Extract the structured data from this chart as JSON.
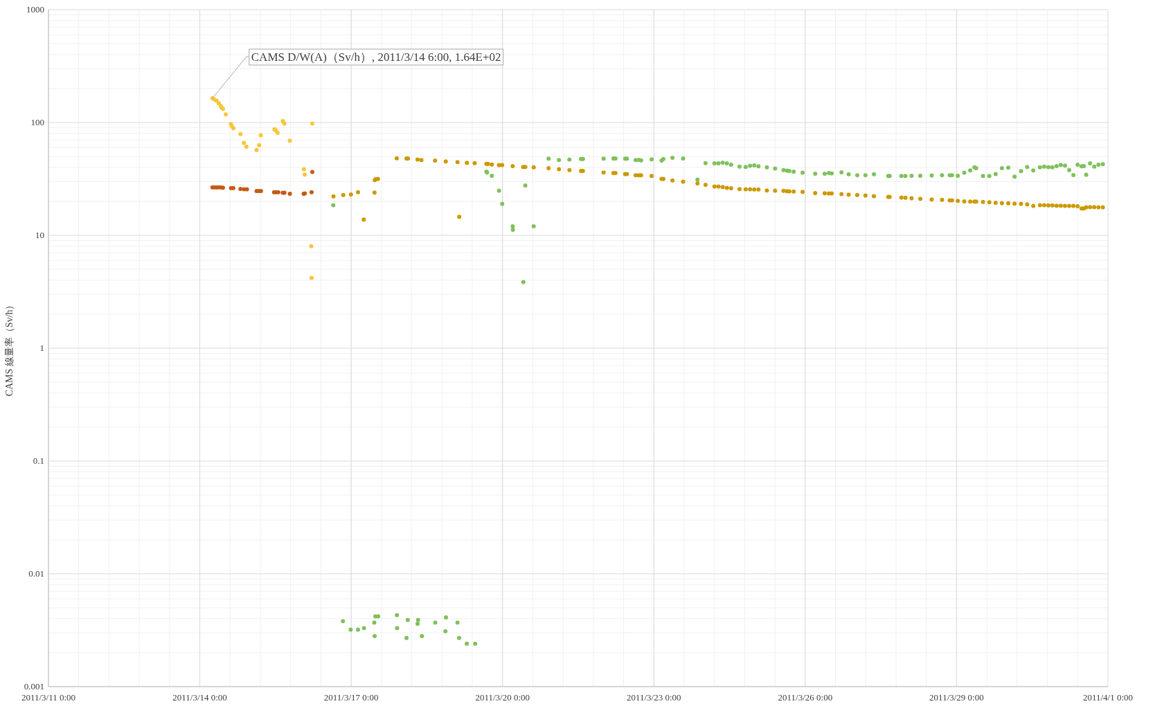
{
  "chart_data": {
    "type": "scatter",
    "ylabel": "CAMS 線量率（Sv/h）",
    "annotations": [
      {
        "text": "CAMS D/W(A)（Sv/h）, 2011/3/14 6:00, 1.64E+02",
        "x": "2011-03-14T06:00",
        "y": 164
      }
    ],
    "log": true,
    "grid": true,
    "marker": "circle",
    "xlim": [
      "2011-03-11",
      "2011-04-01"
    ],
    "xticks": [
      {
        "value": "2011-03-11",
        "label": "2011/3/11 0:00"
      },
      {
        "value": "2011-03-14",
        "label": "2011/3/14 0:00"
      },
      {
        "value": "2011-03-17",
        "label": "2011/3/17 0:00"
      },
      {
        "value": "2011-03-20",
        "label": "2011/3/20 0:00"
      },
      {
        "value": "2011-03-23",
        "label": "2011/3/23 0:00"
      },
      {
        "value": "2011-03-26",
        "label": "2011/3/26 0:00"
      },
      {
        "value": "2011-03-29",
        "label": "2011/3/29 0:00"
      },
      {
        "value": "2011-04-01",
        "label": "2011/4/1 0:00"
      }
    ],
    "ylim": [
      0.001,
      1000
    ],
    "yticks": [
      0.001,
      0.01,
      0.1,
      1,
      10,
      100,
      1000
    ],
    "series": [
      {
        "color": "#f7c63b",
        "x": [
          "2011-03-14T06:00",
          "2011-03-14T07:00",
          "2011-03-14T08:00",
          "2011-03-14T09:00",
          "2011-03-14T10:00",
          "2011-03-14T10:15",
          "2011-03-14T11:00",
          "2011-03-14T12:20",
          "2011-03-14T14:45",
          "2011-03-14T15:15",
          "2011-03-14T16:00",
          "2011-03-14T19:20",
          "2011-03-14T21:00",
          "2011-03-14T22:10",
          "2011-03-15T03:00",
          "2011-03-15T04:15",
          "2011-03-15T05:00",
          "2011-03-15T11:30",
          "2011-03-15T12:10",
          "2011-03-15T13:00",
          "2011-03-15T15:30",
          "2011-03-15T16:15",
          "2011-03-15T18:50",
          "2011-03-16T01:30",
          "2011-03-16T01:55",
          "2011-03-16T05:30",
          "2011-03-16T05:00",
          "2011-03-16T05:10"
        ],
        "values": [
          164,
          160,
          156,
          148,
          140,
          136,
          132,
          118,
          97,
          93,
          89,
          79,
          66,
          61,
          57,
          63,
          77,
          87,
          85,
          81,
          103,
          98,
          69,
          38.5,
          34.6,
          98,
          8.0,
          4.2
        ]
      },
      {
        "color": "#c65a12",
        "x": [
          "2011-03-14T06:00",
          "2011-03-14T07:00",
          "2011-03-14T08:00",
          "2011-03-14T09:00",
          "2011-03-14T10:00",
          "2011-03-14T11:00",
          "2011-03-14T14:50",
          "2011-03-14T15:55",
          "2011-03-14T19:20",
          "2011-03-14T21:05",
          "2011-03-14T22:25",
          "2011-03-15T03:00",
          "2011-03-15T04:00",
          "2011-03-15T05:05",
          "2011-03-15T11:20",
          "2011-03-15T12:10",
          "2011-03-15T13:20",
          "2011-03-15T15:30",
          "2011-03-15T16:15",
          "2011-03-15T18:50",
          "2011-03-16T01:25",
          "2011-03-16T01:55",
          "2011-03-16T05:10",
          "2011-03-16T05:30"
        ],
        "values": [
          26.6,
          26.6,
          26.6,
          26.6,
          26.6,
          26.4,
          26.2,
          26.2,
          25.8,
          25.6,
          25.6,
          24.7,
          24.7,
          24.7,
          24.1,
          24.1,
          24.1,
          23.8,
          23.8,
          23.3,
          23.3,
          23.5,
          24.1,
          36.4
        ]
      },
      {
        "color": "#cc9900",
        "x": [
          "2011-03-16T15:35",
          "2011-03-16T20:15",
          "2011-03-16T23:55",
          "2011-03-17T03:15",
          "2011-03-17T06:00",
          "2011-03-17T11:05",
          "2011-03-17T11:15",
          "2011-03-17T11:40",
          "2011-03-17T12:45",
          "2011-03-17T21:40",
          "2011-03-18T02:20",
          "2011-03-18T03:00",
          "2011-03-18T07:35",
          "2011-03-18T09:25",
          "2011-03-18T15:55",
          "2011-03-18T21:00",
          "2011-03-19T02:35",
          "2011-03-19T03:25",
          "2011-03-19T07:05",
          "2011-03-19T10:45",
          "2011-03-19T16:20",
          "2011-03-19T17:05",
          "2011-03-19T18:55",
          "2011-03-19T22:20",
          "2011-03-19T23:50",
          "2011-03-20T04:50",
          "2011-03-20T09:50",
          "2011-03-20T10:50",
          "2011-03-20T14:50",
          "2011-03-20T21:55",
          "2011-03-21T02:50",
          "2011-03-21T07:50",
          "2011-03-21T13:20",
          "2011-03-21T14:15",
          "2011-03-22T00:05",
          "2011-03-22T04:45",
          "2011-03-22T05:45",
          "2011-03-22T10:20",
          "2011-03-22T11:10",
          "2011-03-22T15:20",
          "2011-03-22T16:50",
          "2011-03-22T17:55",
          "2011-03-22T22:55",
          "2011-03-23T03:40",
          "2011-03-23T04:30",
          "2011-03-23T08:50",
          "2011-03-23T13:55",
          "2011-03-23T20:45",
          "2011-03-24T00:35",
          "2011-03-24T04:50",
          "2011-03-24T06:45",
          "2011-03-24T08:45",
          "2011-03-24T10:45",
          "2011-03-24T12:45",
          "2011-03-24T16:45",
          "2011-03-24T19:40",
          "2011-03-24T21:45",
          "2011-03-24T23:45",
          "2011-03-25T01:45",
          "2011-03-25T05:45",
          "2011-03-25T09:40",
          "2011-03-25T13:40",
          "2011-03-25T15:20",
          "2011-03-25T16:25",
          "2011-03-25T18:30",
          "2011-03-25T22:45",
          "2011-03-26T04:45",
          "2011-03-26T09:15",
          "2011-03-26T11:15",
          "2011-03-26T12:35",
          "2011-03-26T17:15",
          "2011-03-26T20:40",
          "2011-03-27T00:45",
          "2011-03-27T04:40",
          "2011-03-27T08:40",
          "2011-03-27T15:30",
          "2011-03-27T16:10",
          "2011-03-27T21:45",
          "2011-03-27T23:40",
          "2011-03-28T02:35",
          "2011-03-28T06:45",
          "2011-03-28T12:10",
          "2011-03-28T17:05",
          "2011-03-28T20:45",
          "2011-03-28T21:50",
          "2011-03-29T00:35",
          "2011-03-29T03:40",
          "2011-03-29T06:30",
          "2011-03-29T08:30",
          "2011-03-29T09:20",
          "2011-03-29T12:35",
          "2011-03-29T15:35",
          "2011-03-29T18:35",
          "2011-03-29T21:35",
          "2011-03-30T00:35",
          "2011-03-30T03:35",
          "2011-03-30T06:40",
          "2011-03-30T09:35",
          "2011-03-30T12:30",
          "2011-03-30T15:40",
          "2011-03-30T17:40",
          "2011-03-30T19:40",
          "2011-03-30T21:35",
          "2011-03-30T23:35",
          "2011-03-31T01:35",
          "2011-03-31T03:35",
          "2011-03-31T05:35",
          "2011-03-31T07:35",
          "2011-03-31T09:35",
          "2011-03-31T11:30",
          "2011-03-31T12:35",
          "2011-03-31T13:40",
          "2011-03-31T15:30",
          "2011-03-31T17:30",
          "2011-03-31T19:30",
          "2011-03-31T21:35"
        ],
        "values": [
          22.1,
          22.8,
          23.0,
          24.1,
          13.8,
          23.9,
          30.9,
          31.5,
          31.6,
          48.1,
          47.9,
          47.9,
          46.9,
          46.5,
          46.0,
          45.2,
          44.6,
          14.6,
          43.9,
          43.6,
          43.0,
          43.0,
          42.4,
          41.9,
          41.9,
          41.1,
          40.4,
          40.4,
          40.0,
          39.3,
          38.5,
          37.8,
          37.2,
          37.2,
          36.0,
          35.6,
          35.6,
          34.9,
          34.9,
          34.0,
          34.0,
          34.0,
          33.6,
          31.6,
          31.6,
          30.6,
          29.9,
          28.8,
          28.0,
          27.1,
          27.1,
          26.8,
          26.3,
          26.1,
          25.7,
          25.6,
          25.6,
          25.5,
          25.5,
          25.0,
          24.9,
          24.8,
          24.6,
          24.5,
          24.4,
          24.3,
          23.7,
          23.6,
          23.5,
          23.5,
          23.2,
          22.9,
          22.8,
          22.5,
          22.2,
          21.9,
          21.9,
          21.6,
          21.5,
          21.3,
          21.1,
          20.8,
          20.6,
          20.4,
          20.4,
          20.2,
          20.0,
          19.9,
          19.9,
          19.9,
          19.8,
          19.6,
          19.4,
          19.3,
          19.2,
          19.1,
          19.0,
          18.8,
          18.2,
          18.5,
          18.5,
          18.4,
          18.4,
          18.3,
          18.3,
          18.2,
          18.2,
          18.2,
          18.1,
          17.3,
          17.3,
          17.7,
          17.8,
          17.8,
          17.7,
          17.7
        ]
      },
      {
        "color": "#7fc15b",
        "x": [
          "2011-03-16T20:05",
          "2011-03-16T23:45",
          "2011-03-17T03:15",
          "2011-03-17T06:05",
          "2011-03-17T11:00",
          "2011-03-17T11:10",
          "2011-03-17T11:30",
          "2011-03-17T12:50",
          "2011-03-17T21:45",
          "2011-03-17T21:50",
          "2011-03-18T02:20",
          "2011-03-18T02:55",
          "2011-03-18T07:35",
          "2011-03-18T07:50",
          "2011-03-18T09:40",
          "2011-03-18T16:00",
          "2011-03-18T20:50",
          "2011-03-18T21:05",
          "2011-03-19T02:35",
          "2011-03-19T03:20",
          "2011-03-19T07:00",
          "2011-03-19T11:00",
          "2011-03-16T15:30",
          "2011-03-19T16:20",
          "2011-03-19T16:40",
          "2011-03-19T18:55",
          "2011-03-19T22:20",
          "2011-03-19T23:50",
          "2011-03-20T04:50",
          "2011-03-20T04:55",
          "2011-03-20T10:50",
          "2011-03-20T09:55",
          "2011-03-20T14:50",
          "2011-03-20T21:55",
          "2011-03-21T02:50",
          "2011-03-21T07:50",
          "2011-03-21T13:20",
          "2011-03-21T14:15",
          "2011-03-22T00:05",
          "2011-03-22T04:45",
          "2011-03-22T05:45",
          "2011-03-22T10:20",
          "2011-03-22T11:10",
          "2011-03-22T15:20",
          "2011-03-22T16:50",
          "2011-03-22T17:55",
          "2011-03-22T22:55",
          "2011-03-23T03:40",
          "2011-03-23T04:30",
          "2011-03-23T08:50",
          "2011-03-23T13:55",
          "2011-03-23T20:45",
          "2011-03-24T00:35",
          "2011-03-24T04:50",
          "2011-03-24T06:45",
          "2011-03-24T08:45",
          "2011-03-24T10:45",
          "2011-03-24T12:45",
          "2011-03-24T16:45",
          "2011-03-24T19:40",
          "2011-03-24T21:45",
          "2011-03-24T23:45",
          "2011-03-25T01:45",
          "2011-03-25T05:45",
          "2011-03-25T09:40",
          "2011-03-25T13:40",
          "2011-03-25T15:20",
          "2011-03-25T16:25",
          "2011-03-25T18:30",
          "2011-03-25T22:45",
          "2011-03-26T04:45",
          "2011-03-26T09:15",
          "2011-03-26T11:15",
          "2011-03-26T12:35",
          "2011-03-26T17:15",
          "2011-03-26T20:40",
          "2011-03-27T00:45",
          "2011-03-27T04:40",
          "2011-03-27T08:40",
          "2011-03-27T15:30",
          "2011-03-27T16:10",
          "2011-03-27T21:45",
          "2011-03-27T23:40",
          "2011-03-28T02:35",
          "2011-03-28T06:45",
          "2011-03-28T12:10",
          "2011-03-28T17:05",
          "2011-03-28T20:45",
          "2011-03-28T21:50",
          "2011-03-29T00:35",
          "2011-03-29T03:40",
          "2011-03-29T06:30",
          "2011-03-29T08:30",
          "2011-03-29T09:20",
          "2011-03-29T12:35",
          "2011-03-29T15:35",
          "2011-03-29T18:35",
          "2011-03-29T21:35",
          "2011-03-30T00:35",
          "2011-03-30T03:35",
          "2011-03-30T06:40",
          "2011-03-30T09:35",
          "2011-03-30T12:30",
          "2011-03-30T15:40",
          "2011-03-30T17:40",
          "2011-03-30T19:40",
          "2011-03-30T21:35",
          "2011-03-30T23:35",
          "2011-03-31T01:35",
          "2011-03-31T03:35",
          "2011-03-31T05:35",
          "2011-03-31T07:35",
          "2011-03-31T09:35",
          "2011-03-31T11:30",
          "2011-03-31T12:35",
          "2011-03-31T13:40",
          "2011-03-31T15:30",
          "2011-03-31T17:30",
          "2011-03-31T19:30",
          "2011-03-31T21:35"
        ],
        "values": [
          0.0038,
          0.0032,
          0.0032,
          0.0033,
          0.0037,
          0.0028,
          0.0042,
          0.0042,
          0.0043,
          0.0033,
          0.0027,
          0.0039,
          0.0036,
          0.0039,
          0.0028,
          0.0037,
          0.0031,
          0.0041,
          0.0037,
          0.0027,
          0.0024,
          0.0024,
          18.5,
          36.7,
          36.1,
          33.7,
          24.9,
          19.0,
          12.0,
          11.2,
          27.7,
          3.85,
          12.0,
          47.8,
          46.4,
          46.9,
          47.5,
          47.5,
          47.8,
          48.0,
          48.0,
          47.8,
          47.8,
          46.4,
          46.6,
          46.2,
          47.1,
          46.0,
          47.5,
          48.7,
          48.0,
          31.2,
          43.6,
          43.4,
          43.4,
          44.1,
          43.4,
          42.3,
          40.7,
          40.4,
          41.3,
          41.7,
          40.9,
          40.0,
          39.1,
          37.8,
          37.4,
          37.2,
          36.7,
          35.9,
          35.2,
          35.1,
          35.7,
          35.4,
          36.2,
          34.8,
          34.1,
          34.1,
          34.8,
          33.6,
          33.6,
          33.6,
          33.6,
          33.7,
          33.7,
          33.9,
          34.1,
          34.1,
          34.1,
          33.7,
          35.9,
          37.6,
          40.0,
          39.4,
          33.6,
          33.6,
          34.9,
          39.4,
          39.8,
          33.1,
          37.1,
          40.4,
          37.6,
          40.0,
          40.6,
          40.2,
          40.0,
          41.1,
          42.1,
          41.5,
          37.9,
          34.2,
          42.3,
          40.9,
          41.1,
          34.4,
          43.4,
          40.7,
          42.3,
          42.7
        ]
      }
    ]
  }
}
